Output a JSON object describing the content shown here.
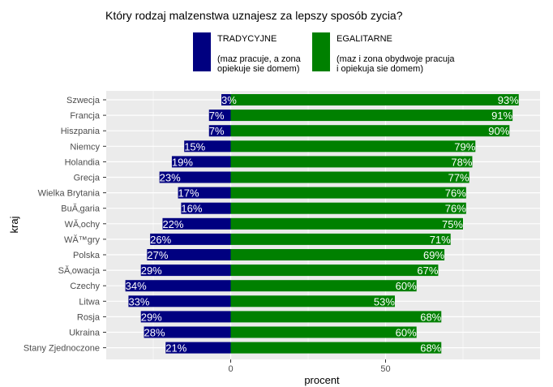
{
  "chart_data": {
    "type": "bar",
    "orientation": "horizontal-diverging",
    "title": "Który rodzaj malzenstwa uznajesz za lepszy sposób zycia?",
    "xlabel": "procent",
    "ylabel": "kraj",
    "xlim": [
      -35,
      100
    ],
    "xticks": [
      0,
      50
    ],
    "grid": true,
    "legend_position": "top",
    "categories": [
      "Szwecja",
      "Francja",
      "Hiszpania",
      "Niemcy",
      "Holandia",
      "Grecja",
      "Wielka Brytania",
      "BuĂ‚garia",
      "WĂ‚ochy",
      "WĂ™gry",
      "Polska",
      "SĂ‚owacja",
      "Czechy",
      "Litwa",
      "Rosja",
      "Ukraina",
      "Stany Zjednoczone"
    ],
    "series": [
      {
        "name": "TRADYCYJNE",
        "description": "(maz pracuje, a zona\nopiekuje sie domem)",
        "color": "#000080",
        "direction": "negative",
        "values": [
          3,
          7,
          7,
          15,
          19,
          23,
          17,
          16,
          22,
          26,
          27,
          29,
          34,
          33,
          29,
          28,
          21
        ]
      },
      {
        "name": "EGALITARNE",
        "description": "(maz i zona obydwoje pracuja\ni opiekuja sie domem)",
        "color": "#008000",
        "direction": "positive",
        "values": [
          93,
          91,
          90,
          79,
          78,
          77,
          76,
          76,
          75,
          71,
          69,
          67,
          60,
          53,
          68,
          60,
          68
        ]
      }
    ],
    "panel_background": "#ebebeb",
    "grid_color": "#ffffff"
  }
}
